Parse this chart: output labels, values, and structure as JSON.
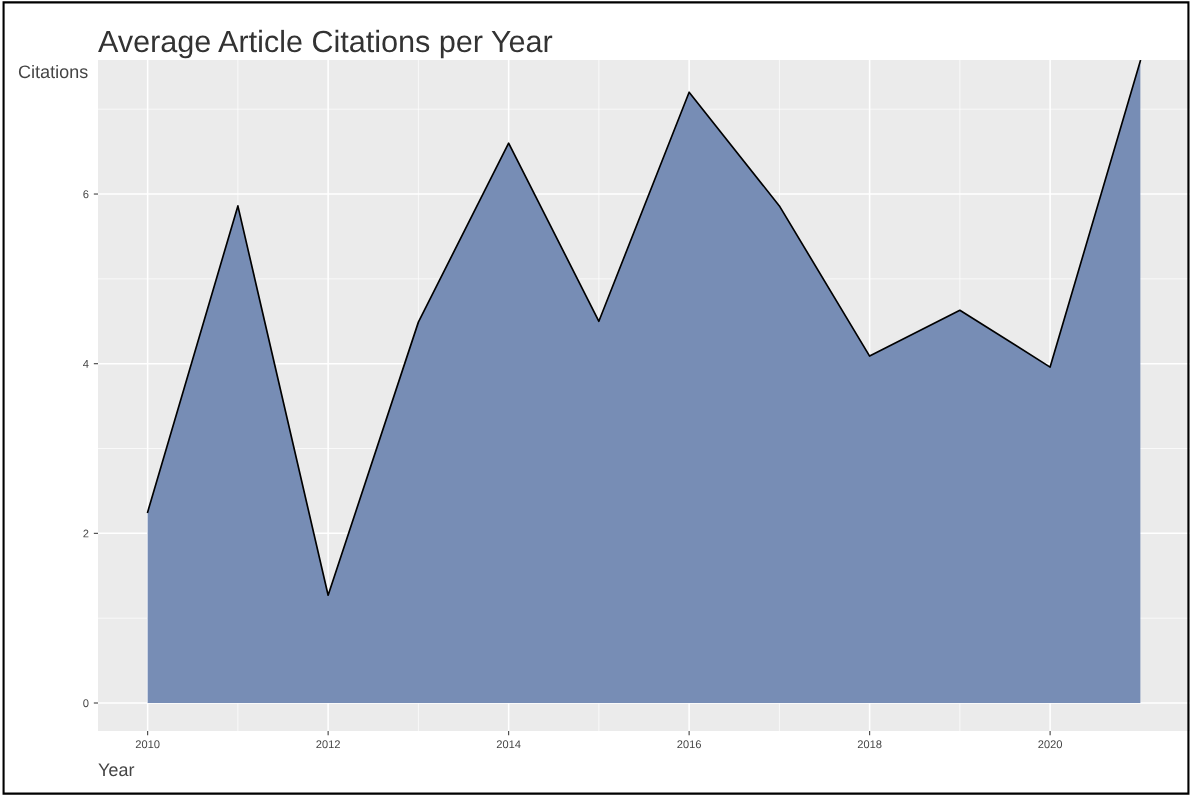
{
  "chart_data": {
    "type": "area",
    "title": "Average Article Citations per Year",
    "xlabel": "Year",
    "ylabel": "Citations",
    "x": [
      2010,
      2011,
      2012,
      2013,
      2014,
      2015,
      2016,
      2017,
      2018,
      2019,
      2020,
      2021
    ],
    "series": [
      {
        "color": "#778db5",
        "values": [
          2.25,
          5.86,
          1.27,
          4.49,
          6.6,
          4.5,
          7.2,
          5.86,
          4.09,
          4.63,
          3.96,
          7.57
        ]
      }
    ],
    "xlim": [
      2009.45,
      2021.55
    ],
    "ylim": [
      -0.33,
      7.58
    ],
    "xticks": [
      2010,
      2012,
      2014,
      2016,
      2018,
      2020
    ],
    "yticks": [
      0,
      2,
      4,
      6
    ],
    "grid": true
  }
}
